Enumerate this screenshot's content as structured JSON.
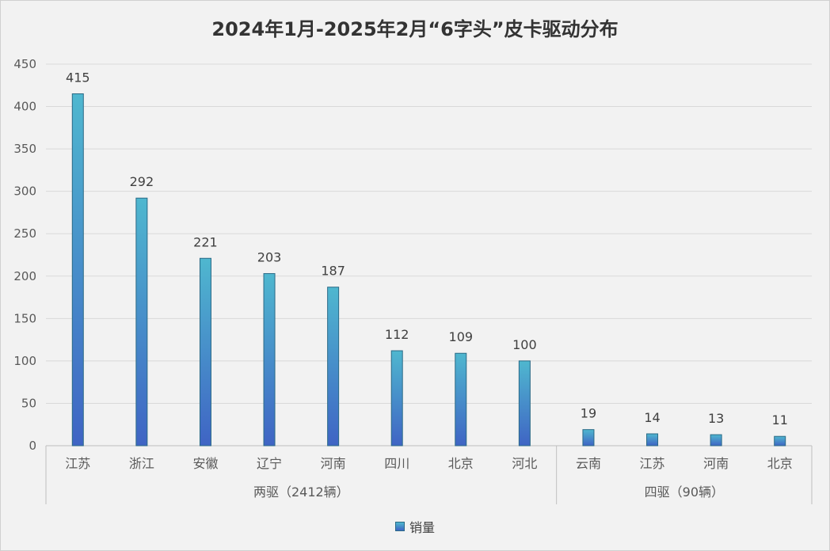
{
  "chart_data": {
    "type": "bar",
    "title": "2024年1月-2025年2月“6字头”皮卡驱动分布",
    "ylim": [
      0,
      450
    ],
    "yticks": [
      "0",
      "50",
      "100",
      "150",
      "200",
      "250",
      "300",
      "350",
      "400",
      "450"
    ],
    "grid": true,
    "legend_position": "bottom",
    "groups": [
      {
        "label": "两驱（2412辆）",
        "categories": [
          "江苏",
          "浙江",
          "安徽",
          "辽宁",
          "河南",
          "四川",
          "北京",
          "河北"
        ],
        "values": [
          415,
          292,
          221,
          203,
          187,
          112,
          109,
          100
        ]
      },
      {
        "label": "四驱（90辆）",
        "categories": [
          "云南",
          "江苏",
          "河南",
          "北京"
        ],
        "values": [
          19,
          14,
          13,
          11
        ]
      }
    ],
    "series": [
      {
        "name": "销量"
      }
    ],
    "colors": {
      "bar_top": "#4fb7cf",
      "bar_bottom": "#3f64c4",
      "bar_edge": "#2a6a86",
      "grid": "#d9d9d9"
    }
  }
}
